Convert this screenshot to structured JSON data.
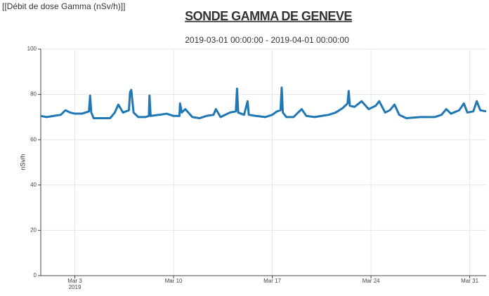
{
  "header_label": "[[Débit de dose Gamma (nSv/h)]]",
  "chart_data": {
    "type": "line",
    "title": "SONDE GAMMA DE GENEVE",
    "subtitle": "2019-03-01 00:00:00 - 2019-04-01 00:00:00",
    "y_label": "nSv/h",
    "x_year_label": "2019",
    "xlim": [
      "2019-02-28T14:00",
      "2019-04-01T04:00"
    ],
    "xticks": [
      {
        "value": "2019-03-03T00:00",
        "label": "Mar 3"
      },
      {
        "value": "2019-03-10T00:00",
        "label": "Mar 10"
      },
      {
        "value": "2019-03-17T00:00",
        "label": "Mar 17"
      },
      {
        "value": "2019-03-24T00:00",
        "label": "Mar 24"
      },
      {
        "value": "2019-03-31T00:00",
        "label": "Mar 31"
      }
    ],
    "ylim": [
      0,
      100
    ],
    "yticks": [
      0,
      20,
      40,
      60,
      80,
      100
    ],
    "grid": true,
    "x": [
      "2019-02-28T14:00",
      "2019-03-01T00:00",
      "2019-03-01T12:00",
      "2019-03-02T00:00",
      "2019-03-02T08:00",
      "2019-03-02T16:00",
      "2019-03-03T00:00",
      "2019-03-03T12:00",
      "2019-03-04T00:00",
      "2019-03-04T02:00",
      "2019-03-04T04:00",
      "2019-03-04T08:00",
      "2019-03-04T20:00",
      "2019-03-05T12:00",
      "2019-03-05T20:00",
      "2019-03-06T02:00",
      "2019-03-06T10:00",
      "2019-03-06T20:00",
      "2019-03-06T22:00",
      "2019-03-07T00:00",
      "2019-03-07T04:00",
      "2019-03-07T12:00",
      "2019-03-08T00:00",
      "2019-03-08T06:00",
      "2019-03-08T07:00",
      "2019-03-08T09:00",
      "2019-03-09T00:00",
      "2019-03-09T12:00",
      "2019-03-10T00:00",
      "2019-03-10T10:00",
      "2019-03-10T11:00",
      "2019-03-10T14:00",
      "2019-03-10T20:00",
      "2019-03-11T08:00",
      "2019-03-11T20:00",
      "2019-03-12T08:00",
      "2019-03-12T20:00",
      "2019-03-13T00:00",
      "2019-03-13T08:00",
      "2019-03-14T00:00",
      "2019-03-14T10:00",
      "2019-03-14T12:00",
      "2019-03-14T14:00",
      "2019-03-15T00:00",
      "2019-03-15T06:00",
      "2019-03-15T08:00",
      "2019-03-15T20:00",
      "2019-03-16T12:00",
      "2019-03-17T00:00",
      "2019-03-17T08:00",
      "2019-03-17T14:00",
      "2019-03-17T16:00",
      "2019-03-17T18:00",
      "2019-03-18T00:00",
      "2019-03-18T12:00",
      "2019-03-18T20:00",
      "2019-03-19T02:00",
      "2019-03-19T10:00",
      "2019-03-20T00:00",
      "2019-03-20T12:00",
      "2019-03-21T00:00",
      "2019-03-21T12:00",
      "2019-03-22T00:00",
      "2019-03-22T08:00",
      "2019-03-22T10:00",
      "2019-03-22T12:00",
      "2019-03-22T20:00",
      "2019-03-23T08:00",
      "2019-03-23T20:00",
      "2019-03-24T08:00",
      "2019-03-24T14:00",
      "2019-03-25T00:00",
      "2019-03-25T08:00",
      "2019-03-25T16:00",
      "2019-03-26T00:00",
      "2019-03-26T12:00",
      "2019-03-27T12:00",
      "2019-03-28T12:00",
      "2019-03-29T00:00",
      "2019-03-29T08:00",
      "2019-03-29T16:00",
      "2019-03-30T06:00",
      "2019-03-30T14:00",
      "2019-03-30T20:00",
      "2019-03-31T06:00",
      "2019-03-31T12:00",
      "2019-03-31T18:00",
      "2019-04-01T04:00"
    ],
    "series": [
      {
        "color": "#1f77b4",
        "values": [
          70.5,
          70,
          70.5,
          71,
          73,
          72,
          71.5,
          71.5,
          72.5,
          79.5,
          72,
          69.5,
          69.5,
          69.5,
          72,
          75.5,
          72,
          73,
          81,
          82,
          72,
          70,
          70,
          70.5,
          79.5,
          70.5,
          71,
          71.5,
          70.5,
          70.5,
          76,
          72,
          73.5,
          70,
          69.5,
          70.5,
          71,
          73.5,
          70,
          72,
          72.5,
          82.5,
          72,
          71,
          77,
          71,
          70.5,
          70,
          71,
          72.5,
          73,
          83,
          72,
          70,
          70,
          72,
          73.5,
          70.5,
          70,
          70.5,
          71,
          72,
          74,
          76,
          81.5,
          75,
          74.5,
          77,
          73.5,
          75,
          77,
          72,
          73,
          75.5,
          71,
          69.5,
          70,
          70,
          71,
          73.5,
          71.5,
          73,
          76,
          72,
          72.5,
          77,
          73,
          72.5
        ]
      }
    ]
  }
}
